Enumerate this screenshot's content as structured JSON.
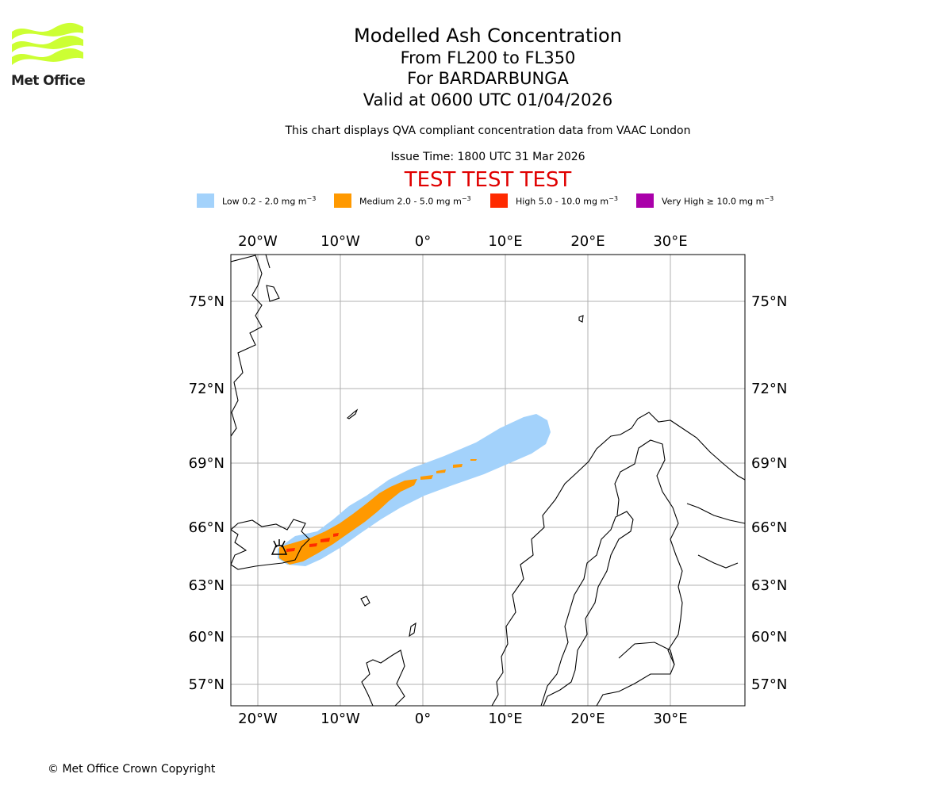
{
  "header": {
    "logo_text": "Met Office",
    "title": "Modelled Ash Concentration",
    "level_range": "From FL200 to FL350",
    "volcano": "For BARDARBUNGA",
    "valid_time": "Valid at 0600 UTC 01/04/2026",
    "description": "This chart displays QVA compliant concentration data from VAAC London",
    "issue_time": "Issue Time: 1800 UTC 31 Mar 2026",
    "test_banner": "TEST TEST TEST"
  },
  "legend": [
    {
      "label": "Low 0.2 - 2.0 mg m",
      "unit_exp": "−3",
      "color": "#a3d2fb"
    },
    {
      "label": "Medium 2.0 - 5.0 mg m",
      "unit_exp": "−3",
      "color": "#ff9900"
    },
    {
      "label": "High 5.0 - 10.0 mg m",
      "unit_exp": "−3",
      "color": "#ff2a00"
    },
    {
      "label": "Very High ≥ 10.0 mg m",
      "unit_exp": "−3",
      "color": "#aa00aa"
    }
  ],
  "map": {
    "lon_ticks": [
      "20°W",
      "10°W",
      "0°",
      "10°E",
      "20°E",
      "30°E"
    ],
    "lat_ticks": [
      "75°N",
      "72°N",
      "69°N",
      "66°N",
      "63°N",
      "60°N",
      "57°N"
    ],
    "volcano_marker": "Bardarbunga volcano symbol"
  },
  "footer": {
    "copyright": "© Met Office Crown Copyright"
  }
}
